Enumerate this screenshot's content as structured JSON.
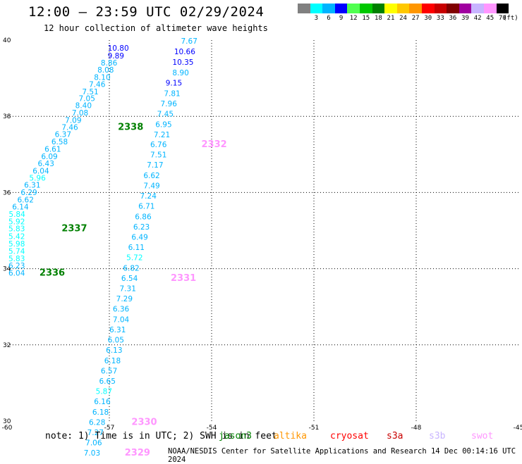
{
  "header": {
    "title": "12:00 – 23:59 UTC 02/29/2024",
    "subtitle": "12 hour collection of altimeter wave heights"
  },
  "legend": {
    "colors": [
      "#808080",
      "#00ffff",
      "#00b4ff",
      "#0000ff",
      "#50ff50",
      "#00c800",
      "#008000",
      "#ffff00",
      "#ffc800",
      "#ff9600",
      "#ff0000",
      "#c80000",
      "#800000",
      "#a000a0",
      "#c8b4ff",
      "#ff96ff",
      "#000000"
    ],
    "labels": [
      "",
      "3",
      "6",
      "9",
      "12",
      "15",
      "18",
      "21",
      "24",
      "27",
      "30",
      "33",
      "36",
      "39",
      "42",
      "45",
      "70"
    ],
    "unit": "(ft)"
  },
  "footer": {
    "note": "note:  1) Time is in UTC; 2) SWH is in feet",
    "credit": "NOAA/NESDIS Center for Satellite Applications and Research    14 Dec 00:14:16 UTC 2024"
  },
  "missions": [
    {
      "name": "jason3",
      "color": "#008000"
    },
    {
      "name": "altika",
      "color": "#ff9600"
    },
    {
      "name": "cryosat",
      "color": "#ff0000"
    },
    {
      "name": "s3a",
      "color": "#c80000"
    },
    {
      "name": "s3b",
      "color": "#c8b4ff"
    },
    {
      "name": "swot",
      "color": "#ff96ff"
    }
  ],
  "chart_data": {
    "type": "scatter",
    "xlim": [
      -60,
      -45
    ],
    "ylim": [
      30,
      40
    ],
    "x_ticks": [
      "-60",
      "-57",
      "-54",
      "-51",
      "-48",
      "-45"
    ],
    "y_ticks": [
      "30",
      "32",
      "34",
      "36",
      "38",
      "40"
    ],
    "grid": true,
    "labels": [
      {
        "x": -54.9,
        "y": 39.91,
        "text": "7.67",
        "color": "#00b4ff"
      },
      {
        "x": -57.05,
        "y": 39.72,
        "text": "10.80",
        "color": "#0000ff"
      },
      {
        "x": -55.1,
        "y": 39.63,
        "text": "10.66",
        "color": "#0000ff"
      },
      {
        "x": -57.05,
        "y": 39.52,
        "text": "9.89",
        "color": "#0000ff"
      },
      {
        "x": -55.15,
        "y": 39.35,
        "text": "10.35",
        "color": "#0000ff"
      },
      {
        "x": -57.25,
        "y": 39.33,
        "text": "8.86",
        "color": "#00b4ff"
      },
      {
        "x": -55.15,
        "y": 39.08,
        "text": "8.90",
        "color": "#00b4ff"
      },
      {
        "x": -57.35,
        "y": 39.15,
        "text": "8.08",
        "color": "#00b4ff"
      },
      {
        "x": -57.45,
        "y": 38.96,
        "text": "8.10",
        "color": "#00b4ff"
      },
      {
        "x": -55.35,
        "y": 38.81,
        "text": "9.15",
        "color": "#0000ff"
      },
      {
        "x": -57.6,
        "y": 38.77,
        "text": "7.46",
        "color": "#00b4ff"
      },
      {
        "x": -57.8,
        "y": 38.58,
        "text": "7.51",
        "color": "#00b4ff"
      },
      {
        "x": -55.4,
        "y": 38.53,
        "text": "7.81",
        "color": "#00b4ff"
      },
      {
        "x": -57.9,
        "y": 38.4,
        "text": "7.05",
        "color": "#00b4ff"
      },
      {
        "x": -55.5,
        "y": 38.26,
        "text": "7.96",
        "color": "#00b4ff"
      },
      {
        "x": -58.0,
        "y": 38.22,
        "text": "8.40",
        "color": "#00b4ff"
      },
      {
        "x": -58.1,
        "y": 38.02,
        "text": "7.08",
        "color": "#00b4ff"
      },
      {
        "x": -55.6,
        "y": 37.99,
        "text": "7.45",
        "color": "#00b4ff"
      },
      {
        "x": -58.3,
        "y": 37.83,
        "text": "7.09",
        "color": "#00b4ff"
      },
      {
        "x": -55.65,
        "y": 37.72,
        "text": "6.95",
        "color": "#00b4ff"
      },
      {
        "x": -58.4,
        "y": 37.64,
        "text": "7.46",
        "color": "#00b4ff"
      },
      {
        "x": -56.75,
        "y": 37.64,
        "text": "2338",
        "color": "#008000",
        "big": true
      },
      {
        "x": -55.7,
        "y": 37.45,
        "text": "7.21",
        "color": "#00b4ff"
      },
      {
        "x": -58.6,
        "y": 37.46,
        "text": "6.37",
        "color": "#00b4ff"
      },
      {
        "x": -58.7,
        "y": 37.26,
        "text": "6.58",
        "color": "#00b4ff"
      },
      {
        "x": -55.8,
        "y": 37.19,
        "text": "6.76",
        "color": "#00b4ff"
      },
      {
        "x": -54.3,
        "y": 37.19,
        "text": "2332",
        "color": "#ff96ff",
        "big": true
      },
      {
        "x": -58.9,
        "y": 37.07,
        "text": "6.61",
        "color": "#00b4ff"
      },
      {
        "x": -55.8,
        "y": 36.92,
        "text": "7.51",
        "color": "#00b4ff"
      },
      {
        "x": -59.0,
        "y": 36.88,
        "text": "6.09",
        "color": "#00b4ff"
      },
      {
        "x": -55.9,
        "y": 36.65,
        "text": "7.17",
        "color": "#00b4ff"
      },
      {
        "x": -59.1,
        "y": 36.69,
        "text": "6.43",
        "color": "#00b4ff"
      },
      {
        "x": -59.25,
        "y": 36.5,
        "text": "6.04",
        "color": "#00b4ff"
      },
      {
        "x": -56.0,
        "y": 36.38,
        "text": "6.62",
        "color": "#00b4ff"
      },
      {
        "x": -59.35,
        "y": 36.31,
        "text": "5.96",
        "color": "#00ffff"
      },
      {
        "x": -56.0,
        "y": 36.11,
        "text": "7.49",
        "color": "#00b4ff"
      },
      {
        "x": -59.5,
        "y": 36.13,
        "text": "6.31",
        "color": "#00b4ff"
      },
      {
        "x": -56.1,
        "y": 35.84,
        "text": "7.24",
        "color": "#00b4ff"
      },
      {
        "x": -59.6,
        "y": 35.93,
        "text": "6.29",
        "color": "#00b4ff"
      },
      {
        "x": -56.15,
        "y": 35.57,
        "text": "6.71",
        "color": "#00b4ff"
      },
      {
        "x": -59.7,
        "y": 35.74,
        "text": "6.62",
        "color": "#00b4ff"
      },
      {
        "x": -59.85,
        "y": 35.55,
        "text": "6.14",
        "color": "#00b4ff"
      },
      {
        "x": -56.25,
        "y": 35.3,
        "text": "6.86",
        "color": "#00b4ff"
      },
      {
        "x": -59.95,
        "y": 35.36,
        "text": "5.84",
        "color": "#00ffff"
      },
      {
        "x": -56.3,
        "y": 35.03,
        "text": "6.23",
        "color": "#00b4ff"
      },
      {
        "x": -60.1,
        "y": 35.17,
        "text": "5.92",
        "color": "#00ffff"
      },
      {
        "x": -60.2,
        "y": 34.98,
        "text": "5.83",
        "color": "#00ffff"
      },
      {
        "x": -58.4,
        "y": 34.98,
        "text": "2337",
        "color": "#008000",
        "big": true
      },
      {
        "x": -56.35,
        "y": 34.76,
        "text": "6.49",
        "color": "#00b4ff"
      },
      {
        "x": -60.3,
        "y": 34.78,
        "text": "5.42",
        "color": "#00ffff"
      },
      {
        "x": -56.45,
        "y": 34.49,
        "text": "6.11",
        "color": "#00b4ff"
      },
      {
        "x": -60.45,
        "y": 34.58,
        "text": "5.98",
        "color": "#00ffff"
      },
      {
        "x": -56.5,
        "y": 34.22,
        "text": "5.72",
        "color": "#00ffff"
      },
      {
        "x": -60.55,
        "y": 34.39,
        "text": "5.74",
        "color": "#00ffff"
      },
      {
        "x": -60.7,
        "y": 34.2,
        "text": "5.83",
        "color": "#00ffff"
      },
      {
        "x": -56.6,
        "y": 33.95,
        "text": "6.82",
        "color": "#00b4ff"
      },
      {
        "x": -60.8,
        "y": 34.01,
        "text": "6.23",
        "color": "#00b4ff"
      },
      {
        "x": -56.65,
        "y": 33.68,
        "text": "6.54",
        "color": "#00b4ff"
      },
      {
        "x": -55.2,
        "y": 33.68,
        "text": "2331",
        "color": "#ff96ff",
        "big": true
      },
      {
        "x": -61.0,
        "y": 33.82,
        "text": "6.04",
        "color": "#00b4ff"
      },
      {
        "x": -59.05,
        "y": 33.82,
        "text": "2336",
        "color": "#008000",
        "big": true
      },
      {
        "x": -56.7,
        "y": 33.41,
        "text": "7.31",
        "color": "#00b4ff"
      },
      {
        "x": -56.8,
        "y": 33.14,
        "text": "7.29",
        "color": "#00b4ff"
      },
      {
        "x": -56.9,
        "y": 32.87,
        "text": "6.36",
        "color": "#00b4ff"
      },
      {
        "x": -56.9,
        "y": 32.6,
        "text": "7.04",
        "color": "#00b4ff"
      },
      {
        "x": -57.0,
        "y": 32.33,
        "text": "6.31",
        "color": "#00b4ff"
      },
      {
        "x": -57.05,
        "y": 32.06,
        "text": "6.05",
        "color": "#00b4ff"
      },
      {
        "x": -57.1,
        "y": 31.79,
        "text": "6.13",
        "color": "#00b4ff"
      },
      {
        "x": -57.15,
        "y": 31.52,
        "text": "6.18",
        "color": "#00b4ff"
      },
      {
        "x": -57.25,
        "y": 31.25,
        "text": "6.57",
        "color": "#00b4ff"
      },
      {
        "x": -57.3,
        "y": 30.98,
        "text": "6.65",
        "color": "#00b4ff"
      },
      {
        "x": -57.4,
        "y": 30.71,
        "text": "5.87",
        "color": "#00ffff"
      },
      {
        "x": -57.45,
        "y": 30.44,
        "text": "6.16",
        "color": "#00b4ff"
      },
      {
        "x": -57.5,
        "y": 30.17,
        "text": "6.18",
        "color": "#00b4ff"
      },
      {
        "x": -57.6,
        "y": 29.9,
        "text": "6.28",
        "color": "#00b4ff"
      },
      {
        "x": -56.35,
        "y": 29.9,
        "text": "2330",
        "color": "#ff96ff",
        "big": true
      },
      {
        "x": -57.65,
        "y": 29.63,
        "text": "7.27",
        "color": "#00b4ff"
      },
      {
        "x": -57.7,
        "y": 29.36,
        "text": "7.06",
        "color": "#00b4ff"
      },
      {
        "x": -57.75,
        "y": 29.09,
        "text": "7.03",
        "color": "#00b4ff"
      },
      {
        "x": -56.55,
        "y": 29.09,
        "text": "2329",
        "color": "#ff96ff",
        "big": true
      }
    ]
  }
}
